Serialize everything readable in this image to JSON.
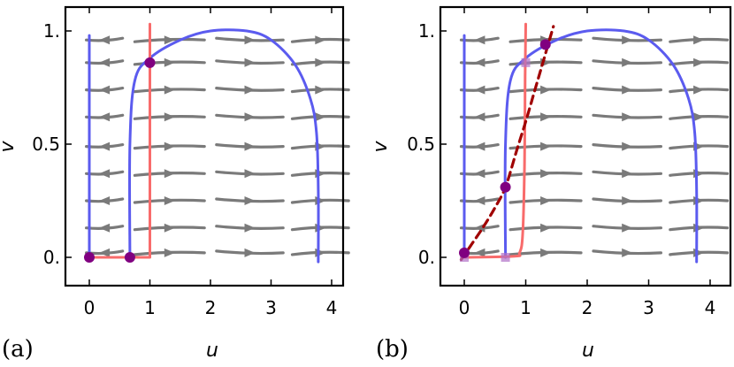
{
  "chart_data": [
    {
      "type": "line",
      "panel_label": "(a)",
      "xlabel": "u",
      "ylabel": "v",
      "xlim": [
        -0.35,
        4.35
      ],
      "ylim": [
        -0.05,
        1.05
      ],
      "xticks": [
        "0",
        "1",
        "2",
        "3",
        "4"
      ],
      "xtick_values": [
        0,
        1,
        2,
        3,
        4
      ],
      "yticks": [
        "0.",
        "0.5",
        "1."
      ],
      "ytick_values": [
        0,
        0.5,
        1
      ],
      "grid": false,
      "colors": {
        "u_nullcline": "#5b5bef",
        "v_nullcline": "#f86b6b",
        "stream": "#7a7a7a",
        "points": "#800080"
      },
      "series": [
        {
          "role": "u-nullcline line",
          "x": [
            0,
            0
          ],
          "y": [
            0,
            0.98
          ]
        },
        {
          "role": "u-nullcline arch",
          "x": [
            0.67,
            0.67,
            0.75,
            1.0,
            1.5,
            2.0,
            2.6,
            3.0,
            3.4,
            3.65,
            3.75,
            3.78,
            3.78
          ],
          "y": [
            0,
            0.5,
            0.78,
            0.88,
            0.96,
            1.0,
            1.0,
            0.96,
            0.85,
            0.7,
            0.55,
            0.3,
            -0.02
          ]
        },
        {
          "role": "v-nullcline",
          "x": [
            0,
            1,
            1,
            1
          ],
          "y": [
            0,
            0,
            0.5,
            1.03
          ]
        }
      ],
      "points": [
        {
          "x": 0,
          "y": 0
        },
        {
          "x": 0.67,
          "y": 0
        },
        {
          "x": 1.0,
          "y": 0.86
        }
      ],
      "stream_rows": [
        0.02,
        0.13,
        0.25,
        0.37,
        0.49,
        0.62,
        0.74,
        0.86,
        0.96
      ],
      "stream_left_below_y": [
        0.99,
        0.99,
        0.99,
        0.99,
        0.99,
        0.99,
        0.99,
        0.87,
        0.99
      ]
    },
    {
      "type": "line",
      "panel_label": "(b)",
      "xlabel": "u",
      "ylabel": "v",
      "xlim": [
        -0.35,
        4.35
      ],
      "ylim": [
        -0.05,
        1.05
      ],
      "xticks": [
        "0",
        "1",
        "2",
        "3",
        "4"
      ],
      "xtick_values": [
        0,
        1,
        2,
        3,
        4
      ],
      "yticks": [
        "0.",
        "0.5",
        "1."
      ],
      "ytick_values": [
        0,
        0.5,
        1
      ],
      "grid": false,
      "colors": {
        "u_nullcline": "#5b5bef",
        "v_nullcline": "#f86b6b",
        "stream": "#7a7a7a",
        "points": "#800080",
        "dashed": "#a00000"
      },
      "series": [
        {
          "role": "u-nullcline line",
          "x": [
            0,
            0
          ],
          "y": [
            0,
            0.98
          ]
        },
        {
          "role": "u-nullcline arch",
          "x": [
            0.67,
            0.67,
            0.75,
            1.0,
            1.5,
            2.0,
            2.6,
            3.0,
            3.4,
            3.65,
            3.75,
            3.78,
            3.78
          ],
          "y": [
            0,
            0.5,
            0.78,
            0.88,
            0.96,
            1.0,
            1.0,
            0.96,
            0.85,
            0.7,
            0.55,
            0.3,
            -0.02
          ]
        },
        {
          "role": "v-nullcline smooth",
          "x": [
            0,
            0.82,
            0.9,
            0.95,
            0.98,
            0.99,
            1.0
          ],
          "y": [
            0,
            0.005,
            0.02,
            0.1,
            0.4,
            0.8,
            1.03
          ]
        },
        {
          "role": "dashed curve",
          "x": [
            -0.05,
            0.1,
            0.3,
            0.5,
            0.67,
            0.85,
            1.0,
            1.15,
            1.3,
            1.45
          ],
          "y": [
            -0.01,
            0.05,
            0.13,
            0.22,
            0.31,
            0.47,
            0.6,
            0.74,
            0.88,
            1.02
          ]
        }
      ],
      "points": [
        {
          "x": 0,
          "y": 0.02
        },
        {
          "x": 0.67,
          "y": 0.31
        },
        {
          "x": 1.32,
          "y": 0.94
        }
      ],
      "faded_points": [
        {
          "x": 0,
          "y": 0
        },
        {
          "x": 0.67,
          "y": 0
        },
        {
          "x": 1.0,
          "y": 0.86
        }
      ],
      "stream_rows": [
        0.02,
        0.13,
        0.25,
        0.37,
        0.49,
        0.62,
        0.74,
        0.86,
        0.96
      ],
      "stream_left_below_y": [
        0.99,
        0.99,
        0.99,
        0.99,
        0.99,
        0.99,
        0.99,
        0.87,
        0.99
      ]
    }
  ]
}
